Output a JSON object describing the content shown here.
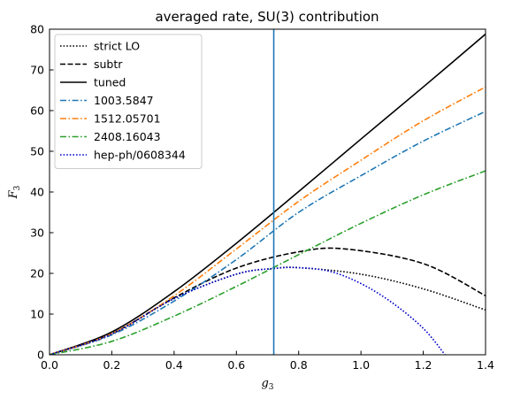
{
  "chart_data": {
    "type": "line",
    "title": "averaged rate, SU(3) contribution",
    "xlabel": "g3",
    "ylabel": "F3",
    "xlim": [
      0,
      1.4
    ],
    "ylim": [
      0,
      80
    ],
    "x_ticks": [
      "0.0",
      "0.2",
      "0.4",
      "0.6",
      "0.8",
      "1.0",
      "1.2",
      "1.4"
    ],
    "y_ticks": [
      "0",
      "10",
      "20",
      "30",
      "40",
      "50",
      "60",
      "70",
      "80"
    ],
    "grid": false,
    "legend_position": "upper-left",
    "vline": {
      "x": 0.72,
      "color": "#1f77b4"
    },
    "series": [
      {
        "name": "strict LO",
        "color": "#000000",
        "dash": "dotted",
        "x": [
          0,
          0.2,
          0.4,
          0.6,
          0.72,
          0.8,
          1.0,
          1.2,
          1.4
        ],
        "y": [
          0,
          5.1,
          13.8,
          19.8,
          21.2,
          21.4,
          19.8,
          16.2,
          11.0
        ]
      },
      {
        "name": "subtr",
        "color": "#000000",
        "dash": "dashed",
        "x": [
          0,
          0.2,
          0.4,
          0.6,
          0.8,
          0.95,
          1.2,
          1.4
        ],
        "y": [
          0,
          5.2,
          14.0,
          21.3,
          25.3,
          26.0,
          22.4,
          14.5
        ]
      },
      {
        "name": "tuned",
        "color": "#000000",
        "dash": "solid",
        "x": [
          0,
          0.2,
          0.4,
          0.6,
          0.8,
          1.0,
          1.2,
          1.4
        ],
        "y": [
          0,
          5.6,
          15.5,
          27.4,
          40.1,
          53.0,
          65.8,
          78.8
        ]
      },
      {
        "name": "1003.5847",
        "color": "#1f77b4",
        "dash": "dashdot",
        "x": [
          0,
          0.2,
          0.4,
          0.6,
          0.8,
          1.0,
          1.2,
          1.4
        ],
        "y": [
          0,
          4.9,
          13.2,
          23.4,
          35.0,
          44.0,
          52.5,
          59.8
        ]
      },
      {
        "name": "1512.05701",
        "color": "#ff7f0e",
        "dash": "dashdot",
        "x": [
          0,
          0.2,
          0.4,
          0.6,
          0.8,
          1.0,
          1.2,
          1.4
        ],
        "y": [
          0,
          5.2,
          14.5,
          26.0,
          37.7,
          47.8,
          57.5,
          65.8
        ]
      },
      {
        "name": "2408.16043",
        "color": "#2ca02c",
        "dash": "dashdot",
        "x": [
          0,
          0.2,
          0.4,
          0.6,
          0.8,
          1.0,
          1.2,
          1.4
        ],
        "y": [
          0,
          3.3,
          9.5,
          16.8,
          24.6,
          32.3,
          39.3,
          45.2
        ]
      },
      {
        "name": "hep-ph/0608344",
        "color": "#0000cc",
        "dash": "dotted",
        "x": [
          0,
          0.2,
          0.4,
          0.6,
          0.72,
          0.8,
          0.9,
          1.0,
          1.1,
          1.2,
          1.27
        ],
        "y": [
          0,
          5.1,
          13.8,
          19.8,
          21.2,
          21.4,
          20.5,
          17.5,
          12.8,
          6.5,
          0
        ]
      }
    ]
  }
}
